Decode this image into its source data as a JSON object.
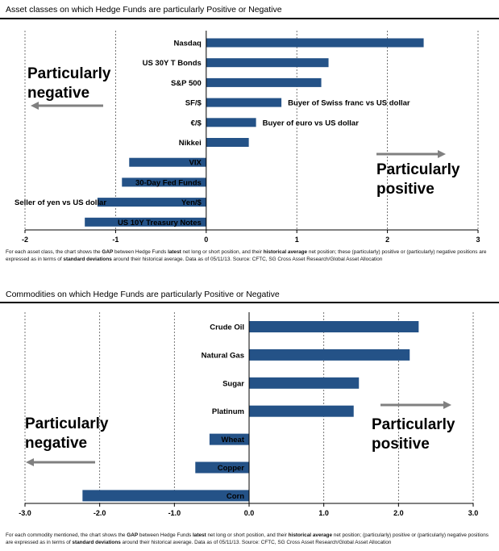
{
  "chart_data": [
    {
      "type": "bar",
      "orientation": "horizontal",
      "title": "Asset classes on which Hedge Funds are particularly Positive or Negative",
      "categories": [
        "Nasdaq",
        "US 30Y T Bonds",
        "S&P 500",
        "SF/$",
        "€/$",
        "Nikkei",
        "VIX",
        "30-Day Fed Funds",
        "Yen/$",
        "US 10Y Treasury Notes"
      ],
      "values": [
        2.4,
        1.35,
        1.27,
        0.83,
        0.55,
        0.47,
        -0.85,
        -0.93,
        -1.2,
        -1.34
      ],
      "xlim": [
        -2,
        3
      ],
      "xticks": [
        "-2",
        "-1",
        "0",
        "1",
        "2",
        "3"
      ],
      "grid": "vertical dashed",
      "bar_color": "#245287",
      "annotations": {
        "negative": [
          "Particularly",
          "negative"
        ],
        "positive": [
          "Particularly",
          "positive"
        ],
        "sf": "Buyer of Swiss franc vs US dollar",
        "eur": "Buyer of euro vs US dollar",
        "yen": "Seller of yen vs US dollar"
      },
      "arrow_color": "#808080"
    },
    {
      "type": "bar",
      "orientation": "horizontal",
      "title": "Commodities on which Hedge Funds are particularly Positive or Negative",
      "categories": [
        "Crude Oil",
        "Natural Gas",
        "Sugar",
        "Platinum",
        "Wheat",
        "Copper",
        "Corn"
      ],
      "values": [
        2.27,
        2.15,
        1.47,
        1.4,
        -0.53,
        -0.72,
        -2.23
      ],
      "xlim": [
        -3.0,
        3.0
      ],
      "xticks": [
        "-3.0",
        "-2.0",
        "-1.0",
        "0.0",
        "1.0",
        "2.0",
        "3.0"
      ],
      "grid": "vertical dashed",
      "bar_color": "#245287",
      "annotations": {
        "negative": [
          "Particularly",
          "negative"
        ],
        "positive": [
          "Particularly",
          "positive"
        ]
      },
      "arrow_color": "#808080"
    }
  ],
  "footnotes": [
    {
      "pre": "For each asset class, the chart shows the ",
      "b1": "GAP",
      "mid1": " between Hedge Funds ",
      "b2": "latest",
      "mid2": " net long or short position, and their ",
      "b3": "historical average",
      "mid3": " net position; these (particularly) positive or (particularly) negative positions are expressed as in terms of ",
      "b4": "standard deviations",
      "post": " around their historical average. Data as of 05/11/13. Source: CFTC, SG Cross Asset Research/Global Asset Allocation"
    },
    {
      "pre": "For each commodity mentioned, the chart shows the ",
      "b1": "GAP",
      "mid1": " between Hedge Funds ",
      "b2": "latest",
      "mid2": " net long or short position, and their ",
      "b3": "historical average",
      "mid3": " net position; (particularly) positive or (particularly) negative positions are expressed as in terms of ",
      "b4": "standard deviations",
      "post": " around their historical average. Data as of 05/11/13. Source: CFTC, SG Cross Asset Research/Global Asset Allocation"
    }
  ]
}
